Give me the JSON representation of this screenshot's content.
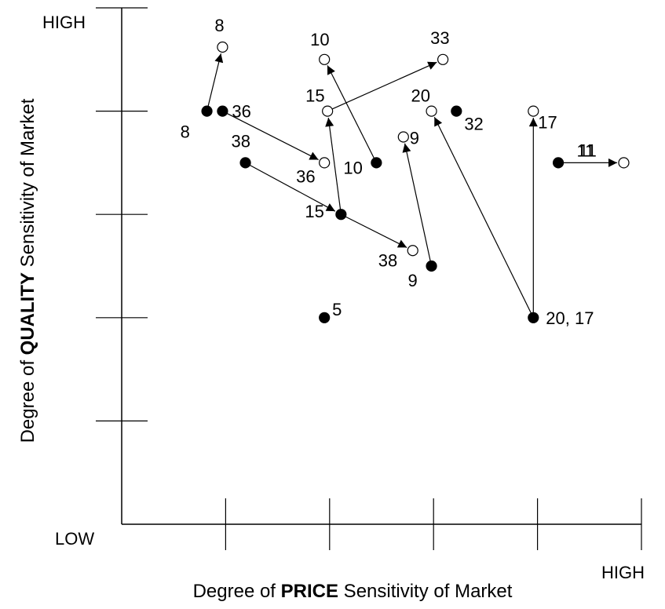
{
  "chart_data": {
    "type": "scatter",
    "xlabel": {
      "pre": "Degree of ",
      "bold": "PRICE",
      "post": " Sensitivity of Market"
    },
    "ylabel": {
      "pre": "Degree of ",
      "bold": "QUALITY",
      "post": " Sensitivity of Market"
    },
    "corner_labels": {
      "y_high": "HIGH",
      "x_low": "LOW",
      "x_high": "HIGH"
    },
    "xlim": [
      0,
      5
    ],
    "ylim": [
      0,
      5
    ],
    "ticks": {
      "x": [
        1,
        2,
        3,
        4,
        5
      ],
      "y": [
        1,
        2,
        3,
        4,
        5
      ]
    },
    "legend": null,
    "series": [
      {
        "marker": "filled",
        "points": [
          {
            "id": "f8",
            "label": "8",
            "x": 0.82,
            "y": 4.0
          },
          {
            "id": "f36",
            "label": "36",
            "x": 0.97,
            "y": 4.0
          },
          {
            "id": "f38",
            "label": "38",
            "x": 1.19,
            "y": 3.5
          },
          {
            "id": "f15",
            "label": "15",
            "x": 2.11,
            "y": 3.0
          },
          {
            "id": "f10",
            "label": "10",
            "x": 2.45,
            "y": 3.5
          },
          {
            "id": "f32",
            "label": "32",
            "x": 3.22,
            "y": 4.0
          },
          {
            "id": "f9",
            "label": "9",
            "x": 2.98,
            "y": 2.5
          },
          {
            "id": "f5",
            "label": "5",
            "x": 1.95,
            "y": 2.0
          },
          {
            "id": "f20",
            "label": "20, 17",
            "x": 3.96,
            "y": 2.0
          },
          {
            "id": "f11",
            "label": "11",
            "x": 4.2,
            "y": 3.5
          }
        ]
      },
      {
        "marker": "open",
        "points": [
          {
            "id": "o8",
            "label": "8",
            "x": 0.97,
            "y": 4.62
          },
          {
            "id": "o10",
            "label": "10",
            "x": 1.95,
            "y": 4.5
          },
          {
            "id": "o33",
            "label": "33",
            "x": 3.09,
            "y": 4.5
          },
          {
            "id": "o15",
            "label": "15",
            "x": 1.98,
            "y": 4.0
          },
          {
            "id": "o20",
            "label": "20",
            "x": 2.98,
            "y": 4.0
          },
          {
            "id": "o17",
            "label": "17",
            "x": 3.96,
            "y": 4.0
          },
          {
            "id": "o9",
            "label": "9",
            "x": 2.71,
            "y": 3.75
          },
          {
            "id": "o36",
            "label": "36",
            "x": 1.95,
            "y": 3.5
          },
          {
            "id": "o11",
            "label": "11",
            "x": 4.83,
            "y": 3.5
          },
          {
            "id": "o38",
            "label": "38",
            "x": 2.8,
            "y": 2.65
          }
        ]
      }
    ],
    "arrows": [
      {
        "from": "f8",
        "to": "o8"
      },
      {
        "from": "f36",
        "to": "o36"
      },
      {
        "from": "f10",
        "to": "o10"
      },
      {
        "from": "f15",
        "to": "o15"
      },
      {
        "from": "o15",
        "to": "o33"
      },
      {
        "from": "f38",
        "to": "f15"
      },
      {
        "from": "f15",
        "to": "o38"
      },
      {
        "from": "f9",
        "to": "o9"
      },
      {
        "from": "f20",
        "to": "o20"
      },
      {
        "from": "f20",
        "to": "o17"
      },
      {
        "from": "f11",
        "to": "o11"
      }
    ]
  }
}
